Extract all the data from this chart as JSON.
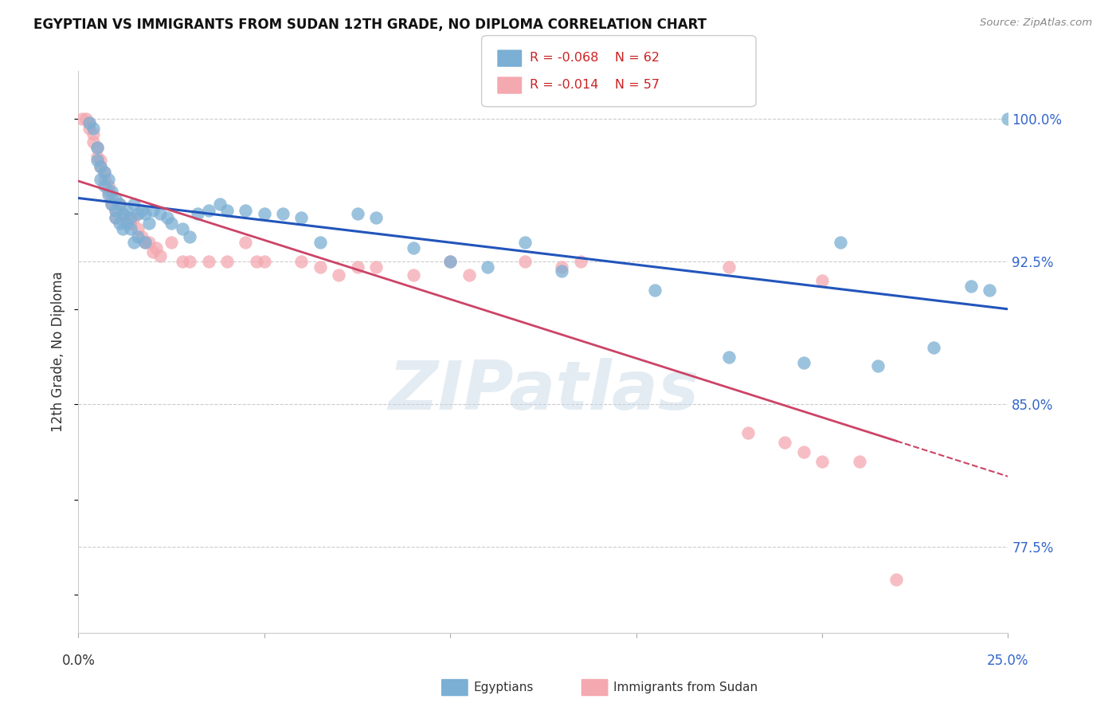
{
  "title": "EGYPTIAN VS IMMIGRANTS FROM SUDAN 12TH GRADE, NO DIPLOMA CORRELATION CHART",
  "source": "Source: ZipAtlas.com",
  "ylabel": "12th Grade, No Diploma",
  "xlim": [
    0.0,
    0.25
  ],
  "ylim": [
    73.0,
    102.5
  ],
  "legend_r_blue": "-0.068",
  "legend_n_blue": "62",
  "legend_r_pink": "-0.014",
  "legend_n_pink": "57",
  "blue_color": "#7BAFD4",
  "pink_color": "#F4A8B0",
  "trend_blue": "#2255BB",
  "trend_pink": "#CC4466",
  "watermark_zip": "ZIP",
  "watermark_atlas": "atlas",
  "egypt_x": [
    0.003,
    0.004,
    0.005,
    0.005,
    0.006,
    0.006,
    0.007,
    0.007,
    0.008,
    0.008,
    0.009,
    0.009,
    0.01,
    0.01,
    0.01,
    0.011,
    0.011,
    0.012,
    0.012,
    0.013,
    0.013,
    0.014,
    0.014,
    0.015,
    0.015,
    0.016,
    0.016,
    0.017,
    0.018,
    0.018,
    0.019,
    0.02,
    0.022,
    0.024,
    0.025,
    0.028,
    0.03,
    0.032,
    0.035,
    0.038,
    0.04,
    0.045,
    0.05,
    0.055,
    0.06,
    0.065,
    0.075,
    0.08,
    0.09,
    0.1,
    0.11,
    0.12,
    0.13,
    0.155,
    0.175,
    0.195,
    0.205,
    0.215,
    0.23,
    0.24,
    0.245,
    0.25
  ],
  "egypt_y": [
    99.8,
    99.5,
    98.5,
    97.8,
    97.5,
    96.8,
    97.2,
    96.5,
    96.8,
    96.0,
    96.2,
    95.5,
    95.8,
    95.2,
    94.8,
    95.5,
    94.5,
    95.0,
    94.2,
    95.2,
    94.5,
    94.8,
    94.2,
    95.5,
    93.5,
    95.0,
    93.8,
    95.2,
    95.0,
    93.5,
    94.5,
    95.2,
    95.0,
    94.8,
    94.5,
    94.2,
    93.8,
    95.0,
    95.2,
    95.5,
    95.2,
    95.2,
    95.0,
    95.0,
    94.8,
    93.5,
    95.0,
    94.8,
    93.2,
    92.5,
    92.2,
    93.5,
    92.0,
    91.0,
    87.5,
    87.2,
    93.5,
    87.0,
    88.0,
    91.2,
    91.0,
    100.0
  ],
  "sudan_x": [
    0.001,
    0.002,
    0.003,
    0.003,
    0.004,
    0.004,
    0.005,
    0.005,
    0.006,
    0.006,
    0.007,
    0.007,
    0.008,
    0.008,
    0.009,
    0.009,
    0.01,
    0.01,
    0.011,
    0.012,
    0.013,
    0.014,
    0.015,
    0.016,
    0.017,
    0.018,
    0.019,
    0.02,
    0.021,
    0.022,
    0.025,
    0.028,
    0.03,
    0.035,
    0.04,
    0.045,
    0.048,
    0.05,
    0.06,
    0.065,
    0.07,
    0.075,
    0.08,
    0.09,
    0.1,
    0.105,
    0.12,
    0.13,
    0.135,
    0.175,
    0.18,
    0.19,
    0.195,
    0.2,
    0.2,
    0.21,
    0.22
  ],
  "sudan_y": [
    100.0,
    100.0,
    99.8,
    99.5,
    99.2,
    98.8,
    98.5,
    98.0,
    97.8,
    97.5,
    97.2,
    96.8,
    96.5,
    96.2,
    95.8,
    95.5,
    95.2,
    94.8,
    95.5,
    95.0,
    94.8,
    94.5,
    94.8,
    94.2,
    93.8,
    93.5,
    93.5,
    93.0,
    93.2,
    92.8,
    93.5,
    92.5,
    92.5,
    92.5,
    92.5,
    93.5,
    92.5,
    92.5,
    92.5,
    92.2,
    91.8,
    92.2,
    92.2,
    91.8,
    92.5,
    91.8,
    92.5,
    92.2,
    92.5,
    92.2,
    83.5,
    83.0,
    82.5,
    82.0,
    91.5,
    82.0,
    75.8
  ]
}
